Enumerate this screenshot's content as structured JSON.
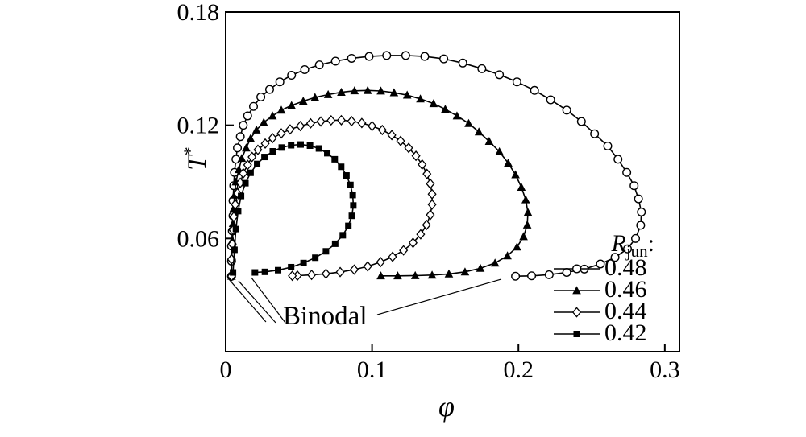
{
  "figure": {
    "y_axis_label": {
      "base": "T",
      "sup": "*"
    },
    "x_axis_label": "φ",
    "annotation": "Binodal",
    "legend": {
      "title": {
        "base": "R",
        "sub": "jun",
        "suffix": ":"
      },
      "entries": [
        {
          "label": "0.48",
          "marker": "circle-open"
        },
        {
          "label": "0.46",
          "marker": "triangle-filled"
        },
        {
          "label": "0.44",
          "marker": "diamond-open"
        },
        {
          "label": "0.42",
          "marker": "square-filled"
        }
      ]
    }
  },
  "chart_data": {
    "type": "line",
    "title": "",
    "xlabel": "φ",
    "ylabel": "T*",
    "xlim": [
      0,
      0.31
    ],
    "ylim": [
      0,
      0.18
    ],
    "grid": false,
    "legend_position": "lower right",
    "x_ticks": [
      {
        "value": 0,
        "label": "0"
      },
      {
        "value": 0.1,
        "label": "0.1"
      },
      {
        "value": 0.2,
        "label": "0.2"
      },
      {
        "value": 0.3,
        "label": "0.3"
      }
    ],
    "y_ticks": [
      {
        "value": 0.06,
        "label": "0.06"
      },
      {
        "value": 0.12,
        "label": "0.12"
      },
      {
        "value": 0.18,
        "label": "0.18"
      }
    ],
    "line_color": "#000000",
    "series": [
      {
        "name": "0.48",
        "marker": "circle-open",
        "points": [
          [
            0.004,
            0.04
          ],
          [
            0.004,
            0.048
          ],
          [
            0.004,
            0.056
          ],
          [
            0.0045,
            0.064
          ],
          [
            0.005,
            0.072
          ],
          [
            0.005,
            0.08
          ],
          [
            0.0055,
            0.088
          ],
          [
            0.006,
            0.095
          ],
          [
            0.007,
            0.102
          ],
          [
            0.008,
            0.108
          ],
          [
            0.01,
            0.114
          ],
          [
            0.012,
            0.12
          ],
          [
            0.015,
            0.125
          ],
          [
            0.019,
            0.13
          ],
          [
            0.024,
            0.135
          ],
          [
            0.03,
            0.139
          ],
          [
            0.037,
            0.143
          ],
          [
            0.045,
            0.1465
          ],
          [
            0.054,
            0.1495
          ],
          [
            0.064,
            0.152
          ],
          [
            0.075,
            0.154
          ],
          [
            0.086,
            0.1555
          ],
          [
            0.098,
            0.1565
          ],
          [
            0.11,
            0.157
          ],
          [
            0.123,
            0.157
          ],
          [
            0.136,
            0.1565
          ],
          [
            0.149,
            0.1552
          ],
          [
            0.162,
            0.153
          ],
          [
            0.175,
            0.15
          ],
          [
            0.187,
            0.1468
          ],
          [
            0.199,
            0.143
          ],
          [
            0.211,
            0.1385
          ],
          [
            0.222,
            0.1335
          ],
          [
            0.233,
            0.128
          ],
          [
            0.243,
            0.122
          ],
          [
            0.252,
            0.1155
          ],
          [
            0.261,
            0.109
          ],
          [
            0.268,
            0.102
          ],
          [
            0.274,
            0.095
          ],
          [
            0.279,
            0.088
          ],
          [
            0.282,
            0.081
          ],
          [
            0.284,
            0.074
          ],
          [
            0.2835,
            0.067
          ],
          [
            0.28,
            0.06
          ],
          [
            0.2745,
            0.0545
          ],
          [
            0.266,
            0.05
          ],
          [
            0.256,
            0.0465
          ],
          [
            0.245,
            0.0438
          ],
          [
            0.233,
            0.042
          ],
          [
            0.221,
            0.0408
          ],
          [
            0.209,
            0.0402
          ],
          [
            0.198,
            0.04
          ]
        ]
      },
      {
        "name": "0.46",
        "marker": "triangle-filled",
        "points": [
          [
            0.004,
            0.04
          ],
          [
            0.004,
            0.05
          ],
          [
            0.0045,
            0.059
          ],
          [
            0.005,
            0.068
          ],
          [
            0.0055,
            0.076
          ],
          [
            0.006,
            0.083
          ],
          [
            0.007,
            0.09
          ],
          [
            0.009,
            0.0965
          ],
          [
            0.011,
            0.1025
          ],
          [
            0.014,
            0.108
          ],
          [
            0.017,
            0.113
          ],
          [
            0.021,
            0.1175
          ],
          [
            0.026,
            0.1215
          ],
          [
            0.032,
            0.125
          ],
          [
            0.038,
            0.128
          ],
          [
            0.045,
            0.1305
          ],
          [
            0.053,
            0.1328
          ],
          [
            0.061,
            0.1348
          ],
          [
            0.07,
            0.1363
          ],
          [
            0.079,
            0.1375
          ],
          [
            0.088,
            0.1383
          ],
          [
            0.097,
            0.1385
          ],
          [
            0.106,
            0.1382
          ],
          [
            0.115,
            0.1373
          ],
          [
            0.124,
            0.136
          ],
          [
            0.133,
            0.134
          ],
          [
            0.142,
            0.1315
          ],
          [
            0.15,
            0.1285
          ],
          [
            0.158,
            0.125
          ],
          [
            0.166,
            0.121
          ],
          [
            0.173,
            0.1165
          ],
          [
            0.18,
            0.1115
          ],
          [
            0.187,
            0.106
          ],
          [
            0.193,
            0.1
          ],
          [
            0.198,
            0.0938
          ],
          [
            0.202,
            0.0872
          ],
          [
            0.205,
            0.0805
          ],
          [
            0.2065,
            0.0738
          ],
          [
            0.206,
            0.0672
          ],
          [
            0.2035,
            0.061
          ],
          [
            0.199,
            0.0555
          ],
          [
            0.1925,
            0.0508
          ],
          [
            0.184,
            0.047
          ],
          [
            0.174,
            0.0442
          ],
          [
            0.1635,
            0.0423
          ],
          [
            0.1525,
            0.0412
          ],
          [
            0.141,
            0.0406
          ],
          [
            0.1295,
            0.0403
          ],
          [
            0.1175,
            0.0402
          ],
          [
            0.106,
            0.0402
          ]
        ]
      },
      {
        "name": "0.44",
        "marker": "diamond-open",
        "points": [
          [
            0.004,
            0.04
          ],
          [
            0.004,
            0.049
          ],
          [
            0.0045,
            0.057
          ],
          [
            0.005,
            0.0645
          ],
          [
            0.0055,
            0.0715
          ],
          [
            0.0065,
            0.078
          ],
          [
            0.008,
            0.084
          ],
          [
            0.01,
            0.0895
          ],
          [
            0.012,
            0.0945
          ],
          [
            0.015,
            0.099
          ],
          [
            0.018,
            0.1032
          ],
          [
            0.022,
            0.107
          ],
          [
            0.027,
            0.1103
          ],
          [
            0.032,
            0.1132
          ],
          [
            0.038,
            0.1157
          ],
          [
            0.044,
            0.1178
          ],
          [
            0.051,
            0.1196
          ],
          [
            0.058,
            0.121
          ],
          [
            0.065,
            0.122
          ],
          [
            0.072,
            0.1226
          ],
          [
            0.079,
            0.1227
          ],
          [
            0.086,
            0.1222
          ],
          [
            0.093,
            0.1212
          ],
          [
            0.1,
            0.1196
          ],
          [
            0.107,
            0.1175
          ],
          [
            0.1135,
            0.1148
          ],
          [
            0.1195,
            0.1117
          ],
          [
            0.125,
            0.108
          ],
          [
            0.13,
            0.1038
          ],
          [
            0.1342,
            0.0992
          ],
          [
            0.1375,
            0.0942
          ],
          [
            0.1398,
            0.089
          ],
          [
            0.141,
            0.0835
          ],
          [
            0.141,
            0.078
          ],
          [
            0.1398,
            0.0725
          ],
          [
            0.1372,
            0.0672
          ],
          [
            0.1332,
            0.0622
          ],
          [
            0.128,
            0.0577
          ],
          [
            0.1215,
            0.0537
          ],
          [
            0.114,
            0.0503
          ],
          [
            0.1058,
            0.0475
          ],
          [
            0.097,
            0.0452
          ],
          [
            0.0878,
            0.0435
          ],
          [
            0.0782,
            0.0422
          ],
          [
            0.0685,
            0.0413
          ],
          [
            0.0587,
            0.0407
          ],
          [
            0.049,
            0.0403
          ],
          [
            0.0455,
            0.0402
          ]
        ]
      },
      {
        "name": "0.42",
        "marker": "square-filled",
        "points": [
          [
            0.005,
            0.042
          ],
          [
            0.006,
            0.054
          ],
          [
            0.007,
            0.065
          ],
          [
            0.0085,
            0.0745
          ],
          [
            0.0105,
            0.0825
          ],
          [
            0.0135,
            0.0893
          ],
          [
            0.017,
            0.0948
          ],
          [
            0.0215,
            0.0995
          ],
          [
            0.0265,
            0.1032
          ],
          [
            0.0322,
            0.1062
          ],
          [
            0.0383,
            0.1082
          ],
          [
            0.0447,
            0.1094
          ],
          [
            0.0512,
            0.1098
          ],
          [
            0.0576,
            0.1092
          ],
          [
            0.0637,
            0.1077
          ],
          [
            0.0694,
            0.1052
          ],
          [
            0.0745,
            0.102
          ],
          [
            0.0789,
            0.098
          ],
          [
            0.0825,
            0.0934
          ],
          [
            0.0852,
            0.0884
          ],
          [
            0.0868,
            0.083
          ],
          [
            0.0872,
            0.0775
          ],
          [
            0.0862,
            0.072
          ],
          [
            0.0838,
            0.0667
          ],
          [
            0.08,
            0.0617
          ],
          [
            0.0748,
            0.0572
          ],
          [
            0.0685,
            0.0532
          ],
          [
            0.0612,
            0.0498
          ],
          [
            0.0532,
            0.047
          ],
          [
            0.0447,
            0.0448
          ],
          [
            0.0358,
            0.0432
          ],
          [
            0.0268,
            0.0423
          ],
          [
            0.02,
            0.042
          ]
        ]
      }
    ],
    "leader_lines": [
      [
        0.0275,
        0.0158,
        0.0022,
        0.0384
      ],
      [
        0.0341,
        0.0154,
        0.0088,
        0.0375
      ],
      [
        0.0407,
        0.0154,
        0.0176,
        0.0392
      ],
      [
        0.1035,
        0.0196,
        0.1883,
        0.0384
      ]
    ]
  }
}
